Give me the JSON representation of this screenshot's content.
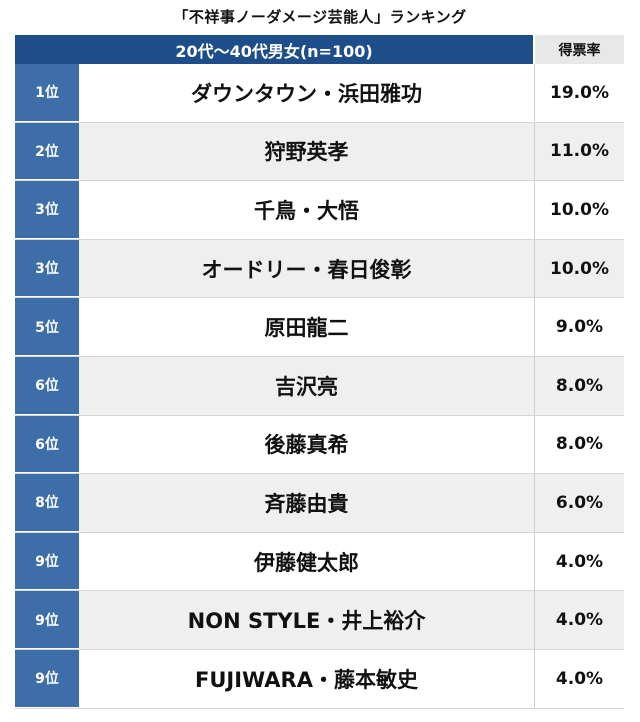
{
  "title": "「不祥事ノーダメージ芸能人」ランキング",
  "header": {
    "group": "20代〜40代男女(n=100)",
    "votes": "得票率"
  },
  "rows": [
    {
      "rank": "1位",
      "name": "ダウンタウン・浜田雅功",
      "pct": "19.0%"
    },
    {
      "rank": "2位",
      "name": "狩野英孝",
      "pct": "11.0%"
    },
    {
      "rank": "3位",
      "name": "千鳥・大悟",
      "pct": "10.0%"
    },
    {
      "rank": "3位",
      "name": "オードリー・春日俊彰",
      "pct": "10.0%"
    },
    {
      "rank": "5位",
      "name": "原田龍二",
      "pct": "9.0%"
    },
    {
      "rank": "6位",
      "name": "吉沢亮",
      "pct": "8.0%"
    },
    {
      "rank": "6位",
      "name": "後藤真希",
      "pct": "8.0%"
    },
    {
      "rank": "8位",
      "name": "斉藤由貴",
      "pct": "6.0%"
    },
    {
      "rank": "9位",
      "name": "伊藤健太郎",
      "pct": "4.0%"
    },
    {
      "rank": "9位",
      "name": "NON STYLE・井上裕介",
      "pct": "4.0%"
    },
    {
      "rank": "9位",
      "name": "FUJIWARA・藤本敏史",
      "pct": "4.0%"
    }
  ]
}
